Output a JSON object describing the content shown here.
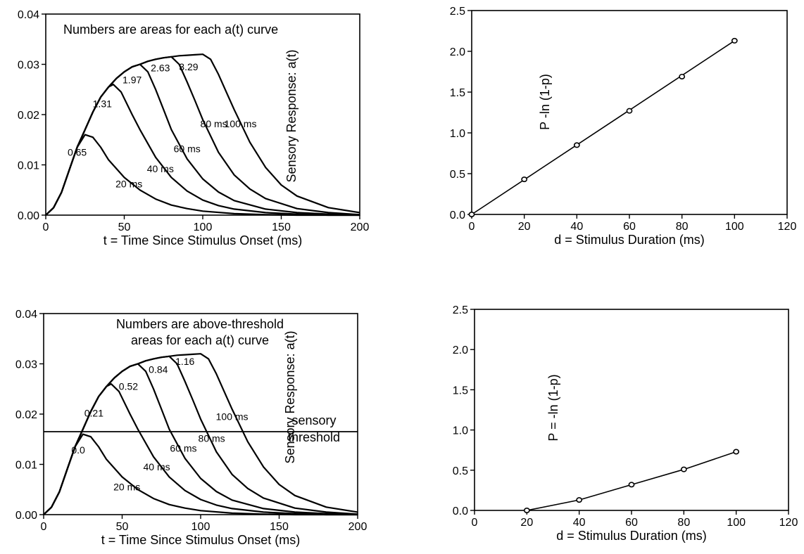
{
  "chart_data": [
    {
      "type": "line",
      "panel": "top-left",
      "title": "",
      "annotation": [
        "Numbers are areas for each a(t) curve"
      ],
      "xlabel": "t = Time Since Stimulus Onset (ms)",
      "ylabel": "Sensory Response: a(t)",
      "xlim": [
        0,
        200
      ],
      "ylim": [
        0,
        0.04
      ],
      "xticks": [
        0,
        50,
        100,
        150,
        200
      ],
      "xtick_labels": [
        "0",
        "50",
        "100",
        "150",
        "200"
      ],
      "yticks": [
        0,
        0.01,
        0.02,
        0.03,
        0.04
      ],
      "ytick_labels": [
        "0.00",
        "0.01",
        "0.02",
        "0.03",
        "0.04"
      ],
      "threshold": null,
      "threshold_label": [],
      "series": [
        {
          "name": "20 ms",
          "area": "0.65",
          "x": [
            0,
            5,
            10,
            15,
            20,
            25,
            30,
            35,
            40,
            50,
            60,
            70,
            80,
            90,
            100,
            120,
            140,
            160,
            180,
            200
          ],
          "y": [
            0,
            0.0015,
            0.0045,
            0.009,
            0.0135,
            0.016,
            0.0155,
            0.0135,
            0.011,
            0.0075,
            0.005,
            0.0032,
            0.002,
            0.0013,
            0.0008,
            0.0003,
            0.0001,
            0,
            0,
            0
          ]
        },
        {
          "name": "40 ms",
          "area": "1.31",
          "x": [
            0,
            5,
            10,
            15,
            20,
            25,
            30,
            35,
            40,
            43,
            48,
            55,
            60,
            70,
            80,
            90,
            100,
            110,
            120,
            140,
            160,
            180,
            200
          ],
          "y": [
            0,
            0.0015,
            0.0045,
            0.009,
            0.0135,
            0.017,
            0.0205,
            0.0235,
            0.0255,
            0.026,
            0.0245,
            0.02,
            0.017,
            0.0115,
            0.0075,
            0.0048,
            0.003,
            0.0019,
            0.0012,
            0.0005,
            0.0002,
            0,
            0
          ]
        },
        {
          "name": "60 ms",
          "area": "1.97",
          "x": [
            0,
            5,
            10,
            15,
            20,
            25,
            30,
            35,
            40,
            45,
            50,
            55,
            60,
            65,
            70,
            75,
            80,
            90,
            100,
            110,
            120,
            140,
            160,
            180,
            200
          ],
          "y": [
            0,
            0.0015,
            0.0045,
            0.009,
            0.0135,
            0.017,
            0.0205,
            0.0235,
            0.0255,
            0.0272,
            0.0285,
            0.0295,
            0.03,
            0.0285,
            0.025,
            0.021,
            0.017,
            0.0112,
            0.0072,
            0.0046,
            0.0029,
            0.0012,
            0.0005,
            0.0002,
            0
          ]
        },
        {
          "name": "80 ms",
          "area": "2.63",
          "x": [
            0,
            5,
            10,
            15,
            20,
            25,
            30,
            35,
            40,
            45,
            50,
            55,
            60,
            65,
            70,
            75,
            80,
            85,
            90,
            95,
            100,
            110,
            120,
            130,
            140,
            160,
            180,
            200
          ],
          "y": [
            0,
            0.0015,
            0.0045,
            0.009,
            0.0135,
            0.017,
            0.0205,
            0.0235,
            0.0255,
            0.0272,
            0.0285,
            0.0295,
            0.03,
            0.0306,
            0.031,
            0.0313,
            0.0315,
            0.03,
            0.0265,
            0.0228,
            0.019,
            0.0125,
            0.008,
            0.0052,
            0.0033,
            0.0013,
            0.0005,
            0.0001
          ]
        },
        {
          "name": "100 ms",
          "area": "3.29",
          "x": [
            0,
            5,
            10,
            15,
            20,
            25,
            30,
            35,
            40,
            45,
            50,
            55,
            60,
            65,
            70,
            75,
            80,
            85,
            90,
            95,
            100,
            105,
            110,
            115,
            120,
            130,
            140,
            150,
            160,
            180,
            200
          ],
          "y": [
            0,
            0.0015,
            0.0045,
            0.009,
            0.0135,
            0.017,
            0.0205,
            0.0235,
            0.0255,
            0.0272,
            0.0285,
            0.0295,
            0.03,
            0.0306,
            0.031,
            0.0313,
            0.0315,
            0.0317,
            0.0318,
            0.0319,
            0.032,
            0.031,
            0.028,
            0.0245,
            0.021,
            0.0145,
            0.0095,
            0.006,
            0.0038,
            0.0015,
            0.0005
          ]
        }
      ],
      "area_labels": [
        {
          "text": "0.65",
          "x": 20,
          "y": 0.0118
        },
        {
          "text": "1.31",
          "x": 36,
          "y": 0.0215
        },
        {
          "text": "1.97",
          "x": 55,
          "y": 0.0262
        },
        {
          "text": "2.63",
          "x": 73,
          "y": 0.0286
        },
        {
          "text": "3.29",
          "x": 91,
          "y": 0.0288
        }
      ],
      "duration_labels": [
        {
          "text": "20 ms",
          "x": 53,
          "y": 0.0055
        },
        {
          "text": "40 ms",
          "x": 73,
          "y": 0.0085
        },
        {
          "text": "60 ms",
          "x": 90,
          "y": 0.0125
        },
        {
          "text": "80 ms",
          "x": 107,
          "y": 0.0175
        },
        {
          "text": "100 ms",
          "x": 124,
          "y": 0.0175
        }
      ]
    },
    {
      "type": "line",
      "panel": "bottom-left",
      "title": "",
      "annotation": [
        "Numbers are above-threshold",
        "areas for each a(t) curve"
      ],
      "xlabel": "t = Time Since Stimulus Onset (ms)",
      "ylabel": "Sensory Response: a(t)",
      "xlim": [
        0,
        200
      ],
      "ylim": [
        0,
        0.04
      ],
      "xticks": [
        0,
        50,
        100,
        150,
        200
      ],
      "xtick_labels": [
        "0",
        "50",
        "100",
        "150",
        "200"
      ],
      "yticks": [
        0,
        0.01,
        0.02,
        0.03,
        0.04
      ],
      "ytick_labels": [
        "0.00",
        "0.01",
        "0.02",
        "0.03",
        "0.04"
      ],
      "threshold": 0.0165,
      "threshold_label": [
        "sensory",
        "threshold"
      ],
      "series": [
        {
          "name": "20 ms",
          "area": "0.0",
          "x": [
            0,
            5,
            10,
            15,
            20,
            25,
            30,
            35,
            40,
            50,
            60,
            70,
            80,
            90,
            100,
            120,
            140,
            160,
            180,
            200
          ],
          "y": [
            0,
            0.0015,
            0.0045,
            0.009,
            0.0135,
            0.016,
            0.0155,
            0.0135,
            0.011,
            0.0075,
            0.005,
            0.0032,
            0.002,
            0.0013,
            0.0008,
            0.0003,
            0.0001,
            0,
            0,
            0
          ]
        },
        {
          "name": "40 ms",
          "area": "0.21",
          "x": [
            0,
            5,
            10,
            15,
            20,
            25,
            30,
            35,
            40,
            43,
            48,
            55,
            60,
            70,
            80,
            90,
            100,
            110,
            120,
            140,
            160,
            180,
            200
          ],
          "y": [
            0,
            0.0015,
            0.0045,
            0.009,
            0.0135,
            0.017,
            0.0205,
            0.0235,
            0.0255,
            0.026,
            0.0245,
            0.02,
            0.017,
            0.0115,
            0.0075,
            0.0048,
            0.003,
            0.0019,
            0.0012,
            0.0005,
            0.0002,
            0,
            0
          ]
        },
        {
          "name": "60 ms",
          "area": "0.52",
          "x": [
            0,
            5,
            10,
            15,
            20,
            25,
            30,
            35,
            40,
            45,
            50,
            55,
            60,
            65,
            70,
            75,
            80,
            90,
            100,
            110,
            120,
            140,
            160,
            180,
            200
          ],
          "y": [
            0,
            0.0015,
            0.0045,
            0.009,
            0.0135,
            0.017,
            0.0205,
            0.0235,
            0.0255,
            0.0272,
            0.0285,
            0.0295,
            0.03,
            0.0285,
            0.025,
            0.021,
            0.017,
            0.0112,
            0.0072,
            0.0046,
            0.0029,
            0.0012,
            0.0005,
            0.0002,
            0
          ]
        },
        {
          "name": "80 ms",
          "area": "0.84",
          "x": [
            0,
            5,
            10,
            15,
            20,
            25,
            30,
            35,
            40,
            45,
            50,
            55,
            60,
            65,
            70,
            75,
            80,
            85,
            90,
            95,
            100,
            110,
            120,
            130,
            140,
            160,
            180,
            200
          ],
          "y": [
            0,
            0.0015,
            0.0045,
            0.009,
            0.0135,
            0.017,
            0.0205,
            0.0235,
            0.0255,
            0.0272,
            0.0285,
            0.0295,
            0.03,
            0.0306,
            0.031,
            0.0313,
            0.0315,
            0.03,
            0.0265,
            0.0228,
            0.019,
            0.0125,
            0.008,
            0.0052,
            0.0033,
            0.0013,
            0.0005,
            0.0001
          ]
        },
        {
          "name": "100 ms",
          "area": "1.16",
          "x": [
            0,
            5,
            10,
            15,
            20,
            25,
            30,
            35,
            40,
            45,
            50,
            55,
            60,
            65,
            70,
            75,
            80,
            85,
            90,
            95,
            100,
            105,
            110,
            115,
            120,
            130,
            140,
            150,
            160,
            180,
            200
          ],
          "y": [
            0,
            0.0015,
            0.0045,
            0.009,
            0.0135,
            0.017,
            0.0205,
            0.0235,
            0.0255,
            0.0272,
            0.0285,
            0.0295,
            0.03,
            0.0306,
            0.031,
            0.0313,
            0.0315,
            0.0317,
            0.0318,
            0.0319,
            0.032,
            0.031,
            0.028,
            0.0245,
            0.021,
            0.0145,
            0.0095,
            0.006,
            0.0038,
            0.0015,
            0.0005
          ]
        }
      ],
      "area_labels": [
        {
          "text": "0.0",
          "x": 22,
          "y": 0.0122
        },
        {
          "text": "0.21",
          "x": 32,
          "y": 0.0195
        },
        {
          "text": "0.52",
          "x": 54,
          "y": 0.0248
        },
        {
          "text": "0.84",
          "x": 73,
          "y": 0.0282
        },
        {
          "text": "1.16",
          "x": 90,
          "y": 0.0298
        }
      ],
      "duration_labels": [
        {
          "text": "20 ms",
          "x": 53,
          "y": 0.0048
        },
        {
          "text": "40 ms",
          "x": 72,
          "y": 0.0088
        },
        {
          "text": "60 ms",
          "x": 89,
          "y": 0.0125
        },
        {
          "text": "80 ms",
          "x": 107,
          "y": 0.0145
        },
        {
          "text": "100 ms",
          "x": 120,
          "y": 0.0188
        }
      ]
    },
    {
      "type": "line",
      "panel": "top-right",
      "title": "",
      "xlabel": "d = Stimulus Duration (ms)",
      "ylabel": "P -ln (1-p)",
      "xlim": [
        0,
        120
      ],
      "ylim": [
        0,
        2.5
      ],
      "xticks": [
        0,
        20,
        40,
        60,
        80,
        100,
        120
      ],
      "xtick_labels": [
        "0",
        "20",
        "40",
        "60",
        "80",
        "100",
        "120"
      ],
      "yticks": [
        0,
        0.5,
        1.0,
        1.5,
        2.0,
        2.5
      ],
      "ytick_labels": [
        "0.0",
        "0.5",
        "1.0",
        "1.5",
        "2.0",
        "2.5"
      ],
      "x": [
        0,
        20,
        40,
        60,
        80,
        100
      ],
      "y": [
        0,
        0.43,
        0.85,
        1.27,
        1.69,
        2.13
      ],
      "fit_line": [
        [
          0,
          0
        ],
        [
          100,
          2.13
        ]
      ]
    },
    {
      "type": "line",
      "panel": "bottom-right",
      "title": "",
      "xlabel": "d = Stimulus Duration (ms)",
      "ylabel": "P = -ln (1-p)",
      "xlim": [
        0,
        120
      ],
      "ylim": [
        0,
        2.5
      ],
      "xticks": [
        0,
        20,
        40,
        60,
        80,
        100,
        120
      ],
      "xtick_labels": [
        "0",
        "20",
        "40",
        "60",
        "80",
        "100",
        "120"
      ],
      "yticks": [
        0,
        0.5,
        1.0,
        1.5,
        2.0,
        2.5
      ],
      "ytick_labels": [
        "0.0",
        "0.5",
        "1.0",
        "1.5",
        "2.0",
        "2.5"
      ],
      "x": [
        20,
        40,
        60,
        80,
        100
      ],
      "y": [
        0.0,
        0.13,
        0.32,
        0.51,
        0.73
      ],
      "fit_line": [
        [
          20,
          0
        ],
        [
          40,
          0.13
        ],
        [
          60,
          0.32
        ],
        [
          80,
          0.51
        ],
        [
          100,
          0.73
        ]
      ]
    }
  ]
}
